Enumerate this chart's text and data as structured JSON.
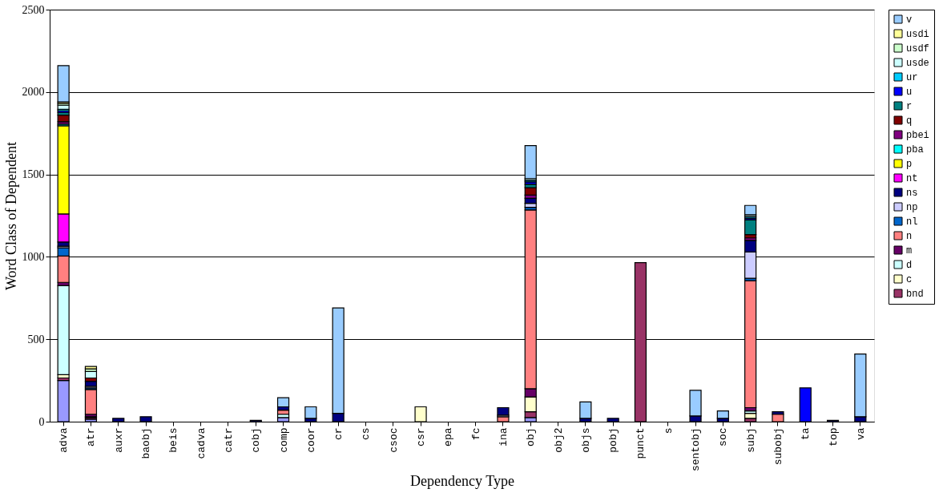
{
  "chart_data": {
    "type": "bar",
    "stacked": true,
    "xlabel": "Dependency Type",
    "ylabel": "Word Class of Dependent",
    "categories": [
      "adva",
      "atr",
      "auxr",
      "baobj",
      "beis",
      "cadva",
      "catr",
      "cobj",
      "comp",
      "coor",
      "cr",
      "cs",
      "csoc",
      "csr",
      "epa",
      "fc",
      "ina",
      "obj",
      "obj2",
      "objs",
      "pobj",
      "punct",
      "s",
      "sentobj",
      "soc",
      "subj",
      "subobj",
      "ta",
      "top",
      "va"
    ],
    "ylim": [
      0,
      2500
    ],
    "yticks": [
      0,
      500,
      1000,
      1500,
      2000,
      2500
    ],
    "grid": "y",
    "legend": "right",
    "series": [
      {
        "color": "#9999ff",
        "values": [
          250,
          15,
          null,
          null,
          null,
          null,
          null,
          null,
          25,
          null,
          null,
          null,
          null,
          null,
          null,
          null,
          null,
          25,
          null,
          null,
          null,
          null,
          null,
          null,
          null,
          null,
          null,
          null,
          null,
          null
        ]
      },
      {
        "name": "bnd",
        "color": "#993366",
        "values": [
          15,
          10,
          null,
          null,
          null,
          null,
          null,
          null,
          null,
          null,
          null,
          null,
          null,
          null,
          null,
          null,
          null,
          35,
          null,
          null,
          null,
          965,
          null,
          null,
          null,
          20,
          null,
          null,
          null,
          null
        ]
      },
      {
        "name": "c",
        "color": "#ffffcc",
        "values": [
          20,
          5,
          null,
          null,
          null,
          null,
          null,
          null,
          null,
          null,
          null,
          null,
          null,
          90,
          null,
          null,
          null,
          90,
          null,
          null,
          null,
          null,
          null,
          null,
          null,
          30,
          null,
          null,
          null,
          null
        ]
      },
      {
        "name": "d",
        "color": "#ccffff",
        "values": [
          540,
          null,
          null,
          null,
          null,
          null,
          null,
          null,
          20,
          null,
          null,
          null,
          null,
          null,
          null,
          null,
          null,
          null,
          null,
          null,
          null,
          null,
          null,
          null,
          null,
          15,
          null,
          null,
          null,
          null
        ]
      },
      {
        "name": "m",
        "color": "#660066",
        "values": [
          20,
          15,
          null,
          null,
          null,
          null,
          null,
          null,
          null,
          null,
          null,
          null,
          null,
          null,
          null,
          null,
          null,
          50,
          null,
          null,
          null,
          null,
          null,
          null,
          null,
          20,
          null,
          null,
          null,
          null
        ]
      },
      {
        "name": "n",
        "color": "#ff8080",
        "values": [
          160,
          150,
          null,
          null,
          null,
          null,
          null,
          null,
          25,
          null,
          null,
          null,
          null,
          null,
          null,
          null,
          30,
          1085,
          null,
          null,
          null,
          null,
          null,
          null,
          null,
          770,
          45,
          null,
          null,
          null
        ]
      },
      {
        "name": "nl",
        "color": "#0066cc",
        "values": [
          50,
          10,
          null,
          null,
          null,
          null,
          null,
          null,
          null,
          null,
          null,
          null,
          null,
          null,
          null,
          null,
          null,
          15,
          null,
          null,
          null,
          null,
          null,
          null,
          null,
          15,
          null,
          null,
          null,
          null
        ]
      },
      {
        "name": "np",
        "color": "#ccccff",
        "values": [
          10,
          10,
          null,
          null,
          null,
          null,
          null,
          null,
          null,
          null,
          null,
          null,
          null,
          null,
          null,
          null,
          10,
          25,
          null,
          null,
          null,
          null,
          null,
          null,
          null,
          160,
          null,
          null,
          null,
          null
        ]
      },
      {
        "name": "ns",
        "color": "#000080",
        "values": [
          25,
          30,
          20,
          30,
          null,
          null,
          null,
          8,
          20,
          20,
          50,
          null,
          null,
          null,
          null,
          null,
          45,
          30,
          null,
          20,
          20,
          null,
          null,
          35,
          20,
          70,
          15,
          null,
          8,
          30
        ]
      },
      {
        "name": "nt",
        "color": "#ff00ff",
        "values": [
          170,
          null,
          null,
          null,
          null,
          null,
          null,
          null,
          null,
          null,
          null,
          null,
          null,
          null,
          null,
          null,
          null,
          null,
          null,
          null,
          null,
          null,
          null,
          null,
          null,
          null,
          null,
          null,
          null,
          null
        ]
      },
      {
        "name": "p",
        "color": "#ffff00",
        "values": [
          535,
          null,
          null,
          null,
          null,
          null,
          null,
          null,
          null,
          null,
          null,
          null,
          null,
          null,
          null,
          null,
          null,
          null,
          null,
          null,
          null,
          null,
          null,
          null,
          null,
          null,
          null,
          null,
          null,
          null
        ]
      },
      {
        "name": "pba",
        "color": "#00ffff",
        "values": [
          10,
          null,
          null,
          null,
          null,
          null,
          null,
          null,
          null,
          null,
          null,
          null,
          null,
          null,
          null,
          null,
          null,
          null,
          null,
          null,
          null,
          null,
          null,
          null,
          null,
          null,
          null,
          null,
          null,
          null
        ]
      },
      {
        "name": "pbei",
        "color": "#800080",
        "values": [
          15,
          null,
          null,
          null,
          null,
          null,
          null,
          null,
          null,
          null,
          null,
          null,
          null,
          null,
          null,
          null,
          null,
          20,
          null,
          null,
          null,
          null,
          null,
          null,
          null,
          15,
          null,
          null,
          null,
          null
        ]
      },
      {
        "name": "q",
        "color": "#800000",
        "values": [
          40,
          20,
          null,
          null,
          null,
          null,
          null,
          null,
          null,
          null,
          null,
          null,
          null,
          null,
          null,
          null,
          null,
          45,
          null,
          null,
          null,
          null,
          null,
          null,
          null,
          20,
          null,
          null,
          null,
          null
        ]
      },
      {
        "name": "r",
        "color": "#008080",
        "values": [
          15,
          null,
          null,
          null,
          null,
          null,
          null,
          null,
          null,
          null,
          null,
          null,
          null,
          null,
          null,
          null,
          null,
          20,
          null,
          null,
          null,
          null,
          null,
          null,
          null,
          90,
          null,
          null,
          null,
          null
        ]
      },
      {
        "name": "u",
        "color": "#0000ff",
        "values": [
          10,
          null,
          null,
          null,
          null,
          null,
          null,
          null,
          null,
          null,
          null,
          null,
          null,
          null,
          null,
          null,
          null,
          15,
          null,
          null,
          null,
          null,
          null,
          null,
          null,
          10,
          null,
          205,
          null,
          null
        ]
      },
      {
        "name": "ur",
        "color": "#00ccff",
        "values": [
          10,
          null,
          null,
          null,
          null,
          null,
          null,
          null,
          null,
          null,
          null,
          null,
          null,
          null,
          null,
          null,
          null,
          10,
          null,
          null,
          null,
          null,
          null,
          null,
          null,
          10,
          null,
          null,
          null,
          null
        ]
      },
      {
        "name": "usde",
        "color": "#ccffff",
        "values": [
          25,
          40,
          null,
          null,
          null,
          null,
          null,
          null,
          null,
          null,
          null,
          null,
          null,
          null,
          null,
          null,
          null,
          10,
          null,
          null,
          null,
          null,
          null,
          null,
          null,
          10,
          null,
          null,
          null,
          null
        ]
      },
      {
        "name": "usdf",
        "color": "#ccffcc",
        "values": [
          10,
          15,
          null,
          null,
          null,
          null,
          null,
          null,
          null,
          null,
          null,
          null,
          null,
          null,
          null,
          null,
          null,
          null,
          null,
          null,
          null,
          null,
          null,
          null,
          null,
          null,
          null,
          null,
          null,
          null
        ]
      },
      {
        "name": "usdi",
        "color": "#ffff99",
        "values": [
          10,
          15,
          null,
          null,
          null,
          null,
          null,
          null,
          null,
          null,
          null,
          null,
          null,
          null,
          null,
          null,
          null,
          null,
          null,
          null,
          null,
          null,
          null,
          null,
          null,
          null,
          null,
          null,
          null,
          null
        ]
      },
      {
        "name": "v",
        "color": "#99ccff",
        "values": [
          220,
          null,
          null,
          null,
          null,
          null,
          null,
          null,
          55,
          70,
          640,
          null,
          null,
          null,
          null,
          null,
          null,
          200,
          null,
          100,
          null,
          null,
          null,
          155,
          45,
          57,
          null,
          null,
          null,
          380
        ]
      }
    ]
  }
}
